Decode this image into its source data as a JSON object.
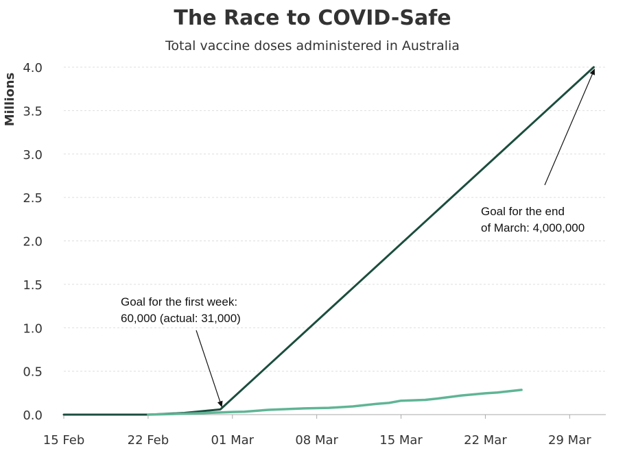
{
  "chart_data": {
    "type": "line",
    "title": "The Race to COVID-Safe",
    "subtitle": "Total vaccine doses administered in Australia",
    "ylabel": "Millions",
    "xlabel": "",
    "ylim": [
      0,
      4.0
    ],
    "yticks": [
      0.0,
      0.5,
      1.0,
      1.5,
      2.0,
      2.5,
      3.0,
      3.5,
      4.0
    ],
    "ytick_labels": [
      "0.0",
      "0.5",
      "1.0",
      "1.5",
      "2.0",
      "2.5",
      "3.0",
      "3.5",
      "4.0"
    ],
    "xlim": [
      "2021-02-15",
      "2021-04-01"
    ],
    "xticks": [
      "2021-02-15",
      "2021-02-22",
      "2021-03-01",
      "2021-03-08",
      "2021-03-15",
      "2021-03-22",
      "2021-03-29"
    ],
    "xtick_labels": [
      "15 Feb",
      "22 Feb",
      "01 Mar",
      "08 Mar",
      "15 Mar",
      "22 Mar",
      "29 Mar"
    ],
    "grid": "horizontal dashed",
    "series": [
      {
        "role": "goal",
        "color": "#1b4d3e",
        "points": [
          {
            "x": "2021-02-15",
            "y": 0.0
          },
          {
            "x": "2021-02-22",
            "y": 0.0
          },
          {
            "x": "2021-02-25",
            "y": 0.02
          },
          {
            "x": "2021-02-28",
            "y": 0.06
          },
          {
            "x": "2021-03-31",
            "y": 4.0
          }
        ]
      },
      {
        "role": "actual",
        "color": "#5fb596",
        "points": [
          {
            "x": "2021-02-22",
            "y": 0.0
          },
          {
            "x": "2021-02-26",
            "y": 0.015
          },
          {
            "x": "2021-03-01",
            "y": 0.031
          },
          {
            "x": "2021-03-02",
            "y": 0.034
          },
          {
            "x": "2021-03-04",
            "y": 0.055
          },
          {
            "x": "2021-03-07",
            "y": 0.072
          },
          {
            "x": "2021-03-09",
            "y": 0.078
          },
          {
            "x": "2021-03-11",
            "y": 0.095
          },
          {
            "x": "2021-03-13",
            "y": 0.125
          },
          {
            "x": "2021-03-14",
            "y": 0.135
          },
          {
            "x": "2021-03-15",
            "y": 0.16
          },
          {
            "x": "2021-03-17",
            "y": 0.17
          },
          {
            "x": "2021-03-18",
            "y": 0.185
          },
          {
            "x": "2021-03-20",
            "y": 0.22
          },
          {
            "x": "2021-03-22",
            "y": 0.245
          },
          {
            "x": "2021-03-23",
            "y": 0.255
          },
          {
            "x": "2021-03-25",
            "y": 0.285
          }
        ]
      }
    ],
    "annotations": [
      {
        "lines": [
          "Goal for the first week:",
          "60,000 (actual: 31,000)"
        ],
        "target": {
          "x": "2021-02-28",
          "y": 0.06
        }
      },
      {
        "lines": [
          "Goal for the end",
          "of March: 4,000,000"
        ],
        "target": {
          "x": "2021-03-31",
          "y": 4.0
        }
      }
    ]
  }
}
